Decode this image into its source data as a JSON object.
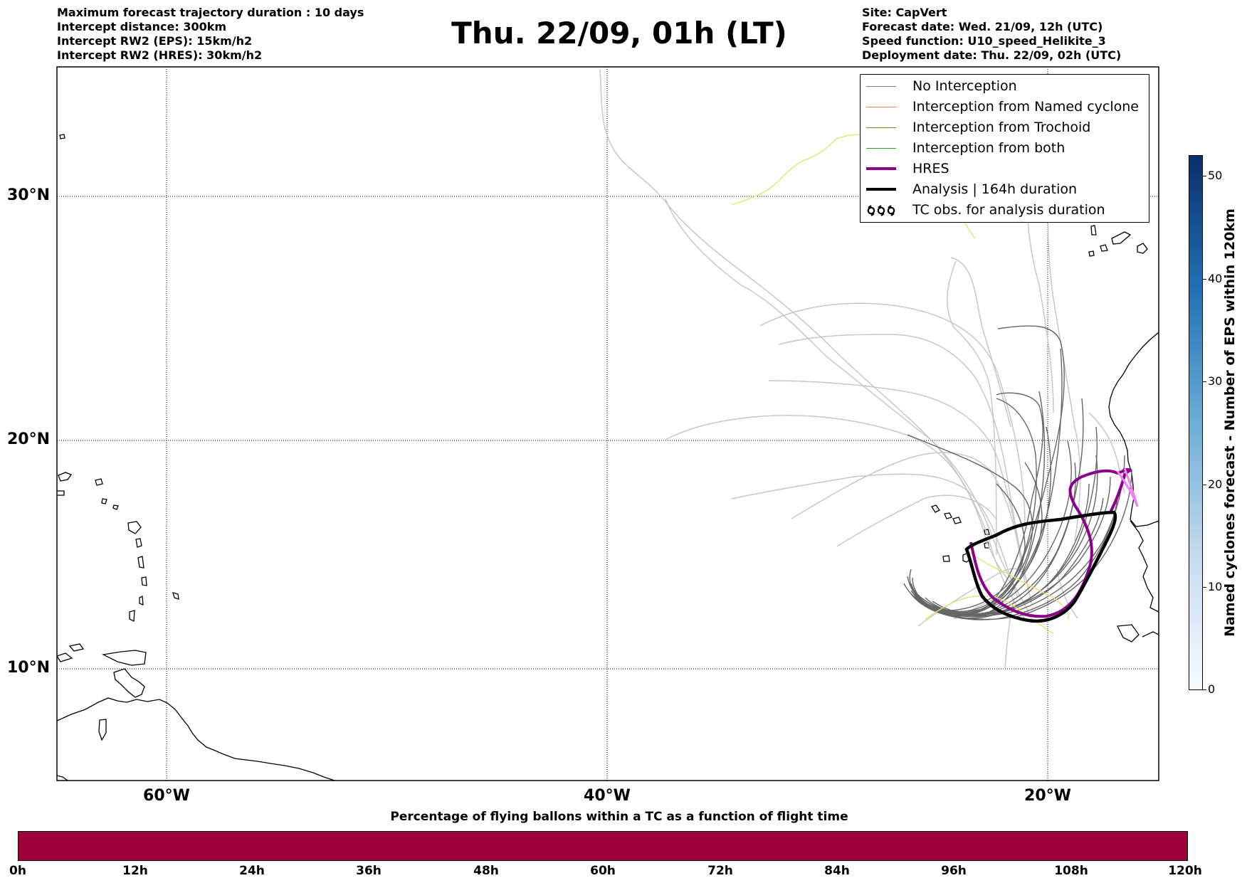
{
  "header_left": {
    "line1": "Maximum forecast trajectory duration : 10 days",
    "line2": "Intercept distance: 300km",
    "line3": "Intercept RW2 (EPS):  15km/h2",
    "line4": "Intercept RW2 (HRES): 30km/h2"
  },
  "title": "Thu. 22/09, 01h (LT)",
  "header_right": {
    "site": "Site: CapVert",
    "forecast_date": "Forecast date: Wed. 21/09, 12h (UTC)",
    "speed_function": "Speed function: U10_speed_Helikite_3",
    "deployment_date": "Deployment date: Thu. 22/09, 02h (UTC)"
  },
  "map": {
    "lat_labels": [
      "30°N",
      "20°N",
      "10°N"
    ],
    "lon_labels": [
      "60°W",
      "40°W",
      "20°W"
    ]
  },
  "legend": [
    {
      "label": "No Interception",
      "color": "#808080",
      "width": 1.5
    },
    {
      "label": "Interception from Named cyclone",
      "color": "#ff7f50",
      "width": 1.5
    },
    {
      "label": "Interception from Trochoid",
      "color": "#8b7d2a",
      "width": 1.5
    },
    {
      "label": "Interception from both",
      "color": "#2ca02c",
      "width": 1.5
    },
    {
      "label": "HRES",
      "color": "#8b008b",
      "width": 4
    },
    {
      "label": "Analysis | 164h duration",
      "color": "#000000",
      "width": 4
    },
    {
      "label": "TC obs. for analysis duration",
      "icon": "tc-symbol-icon",
      "color": "#000000"
    }
  ],
  "colorbar_right": {
    "label": "Named cyclones forecast - Number of EPS within 120km",
    "ticks": [
      "0",
      "10",
      "20",
      "30",
      "40",
      "50"
    ],
    "colors": [
      "#f7fbff",
      "#c6dbef",
      "#6baed6",
      "#2171b5",
      "#08306b"
    ]
  },
  "colorbar_bottom": {
    "title": "Percentage of flying ballons within a TC as a function of flight time",
    "ticks": [
      "0h",
      "12h",
      "24h",
      "36h",
      "48h",
      "60h",
      "72h",
      "84h",
      "96h",
      "108h",
      "120h"
    ],
    "fill_color": "#9e003a"
  }
}
